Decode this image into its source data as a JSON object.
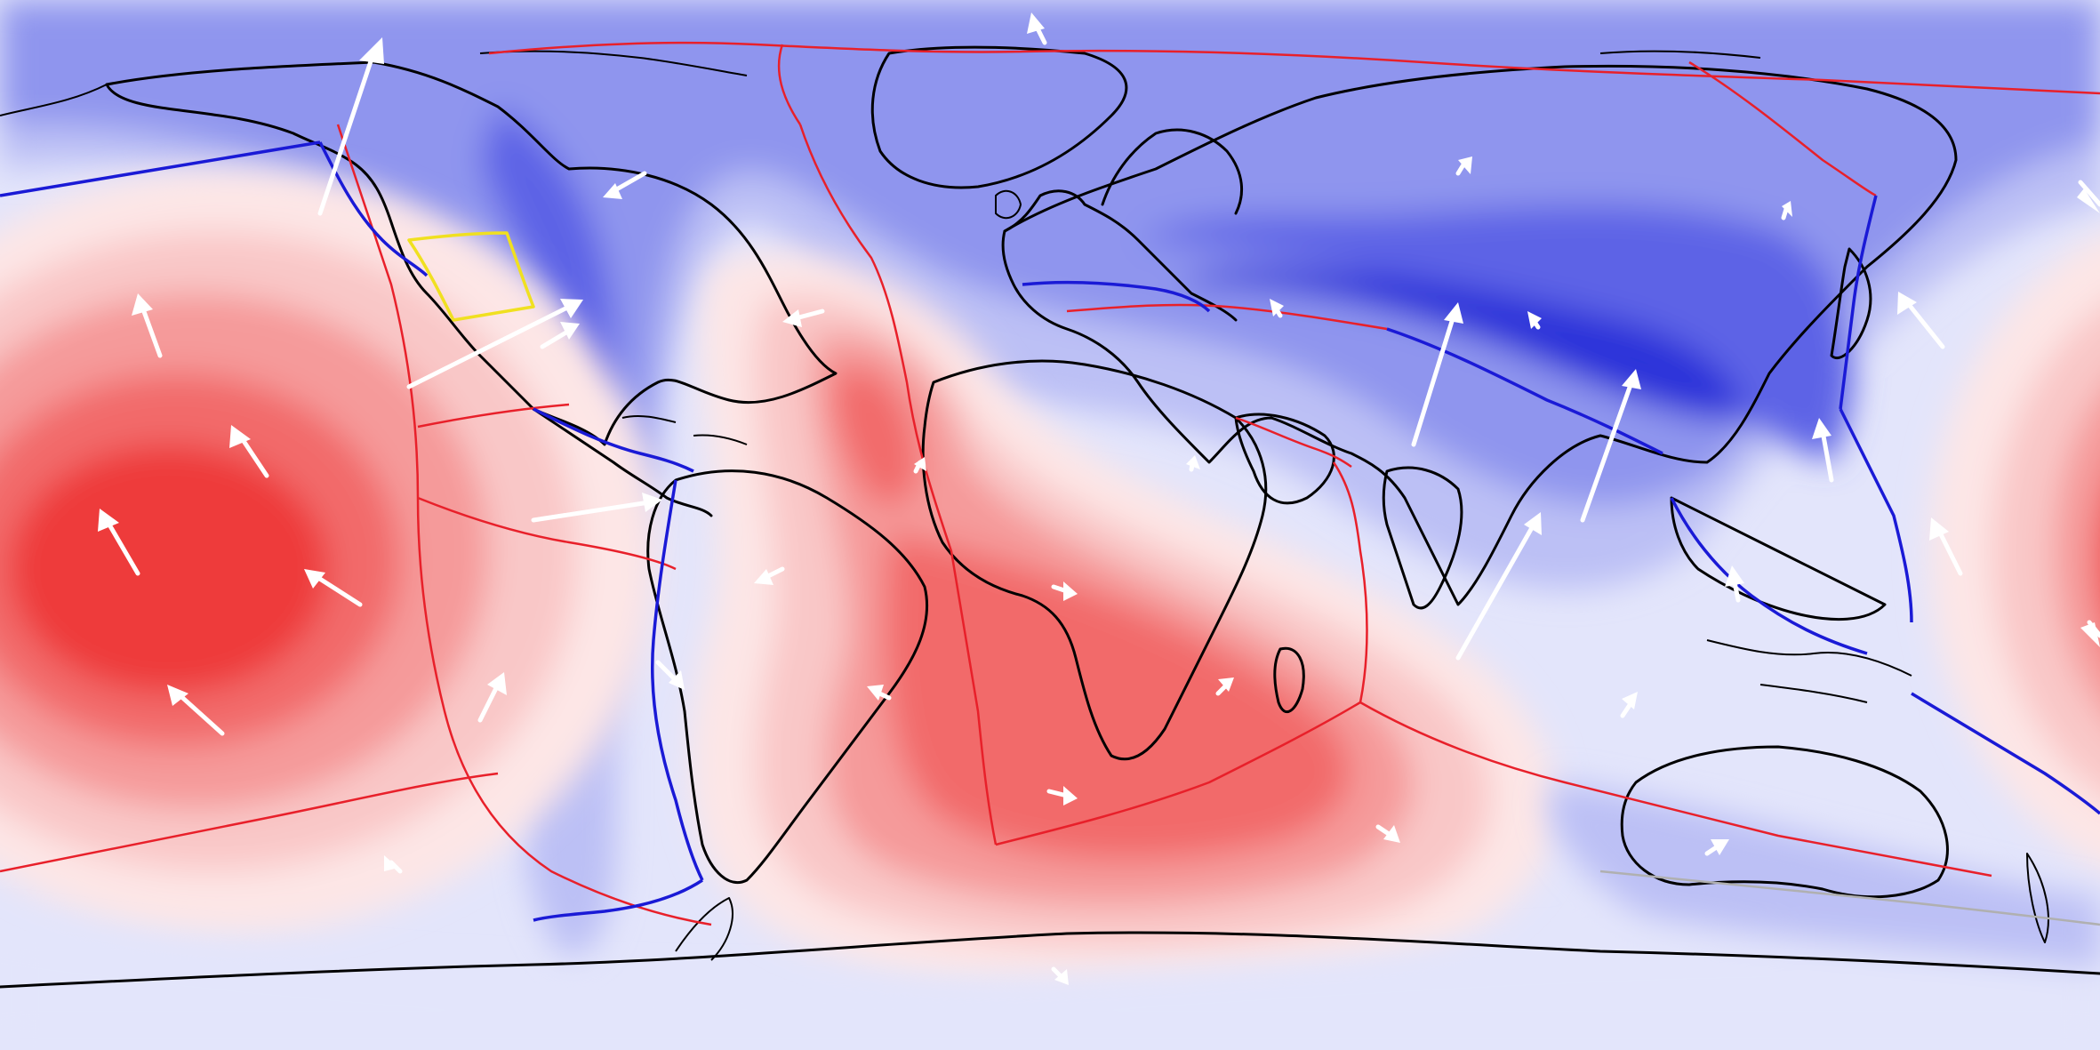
{
  "map": {
    "projection": "equirectangular",
    "colors": {
      "strong_red": "#ee3b3b",
      "red": "#f26a6a",
      "mid_red": "#f59a9a",
      "light_red": "#f9c7c7",
      "pale_red": "#fde6e6",
      "pale_blue": "#e3e5fb",
      "light_blue": "#bcc0f5",
      "blue": "#8f95ee",
      "mid_blue": "#5d63e6",
      "strong_blue": "#2a31d9",
      "coastline": "#000000",
      "ridge_boundary": "#e8202a",
      "subduction_boundary": "#1a1ad6",
      "other_boundary": "#f0e020",
      "inactive_boundary": "#b0b0b0",
      "velocity_arrow": "#ffffff"
    },
    "legend": "none",
    "text_labels": "none"
  }
}
